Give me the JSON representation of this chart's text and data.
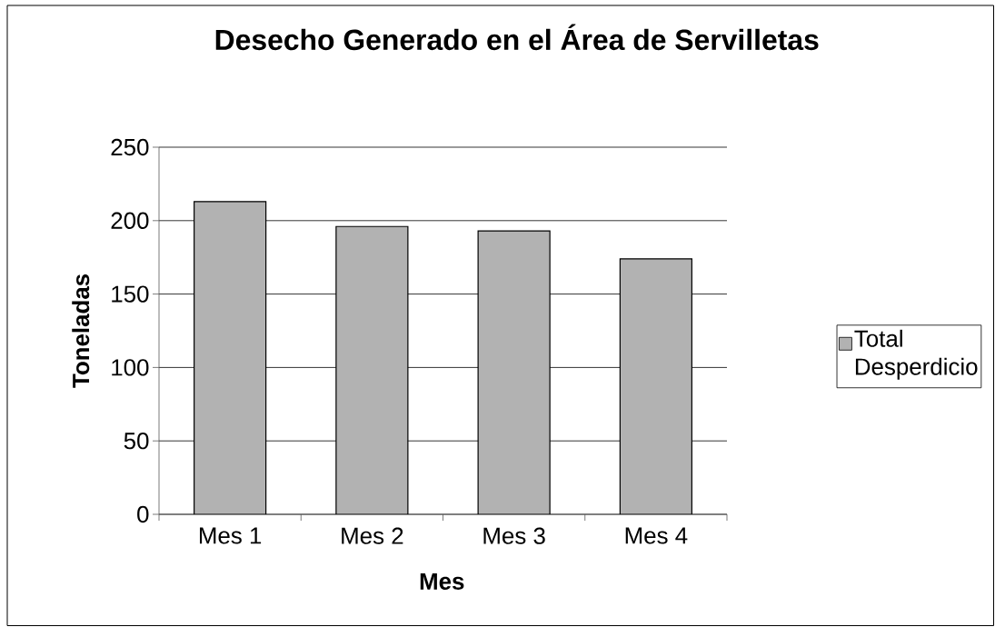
{
  "chart_data": {
    "type": "bar",
    "title": "Desecho Generado en el Área de Servilletas",
    "xlabel": "Mes",
    "ylabel": "Toneladas",
    "categories": [
      "Mes 1",
      "Mes 2",
      "Mes 3",
      "Mes 4"
    ],
    "series": [
      {
        "name": "Total Desperdicio",
        "color": "#b2b2b2",
        "values": [
          213,
          196,
          193,
          174
        ]
      }
    ],
    "ylim": [
      0,
      250
    ],
    "yticks": [
      0,
      50,
      100,
      150,
      200,
      250
    ],
    "grid": "y",
    "legend": "right"
  }
}
